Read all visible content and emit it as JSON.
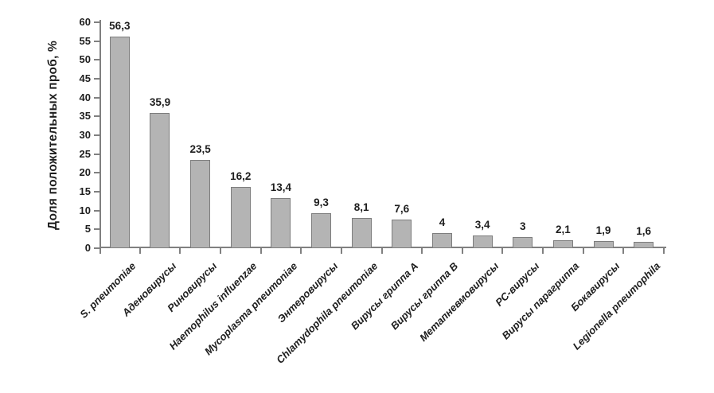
{
  "chart_data": {
    "type": "bar",
    "title": "",
    "xlabel": "",
    "ylabel": "Доля положительных проб, %",
    "ylim": [
      0,
      60
    ],
    "yticks": [
      0,
      5,
      10,
      15,
      20,
      25,
      30,
      35,
      40,
      45,
      50,
      55,
      60
    ],
    "grid": false,
    "legend_position": "none",
    "decimal_separator": ",",
    "categories": [
      "S. pneumoniae",
      "Аденовирусы",
      "Риновирусы",
      "Haemophilus influenzae",
      "Mycoplasma pneumoniae",
      "Энтеровирусы",
      "Chlamydophila pneumoniae",
      "Вирусы гриппа А",
      "Вирусы гриппа В",
      "Метапневмовирусы",
      "РС-вирусы",
      "Вирусы парагриппа",
      "Бокавирусы",
      "Legionella pneumophila"
    ],
    "values": [
      56.3,
      35.9,
      23.5,
      16.2,
      13.4,
      9.3,
      8.1,
      7.6,
      4,
      3.4,
      3,
      2.1,
      1.9,
      1.6
    ],
    "value_labels": [
      "56,3",
      "35,9",
      "23,5",
      "16,2",
      "13,4",
      "9,3",
      "8,1",
      "7,6",
      "4",
      "3,4",
      "3",
      "2,1",
      "1,9",
      "1,6"
    ],
    "colors": {
      "bar_fill": "#b4b4b4",
      "bar_border": "#7d7d7d",
      "axis": "#808080",
      "text": "#1e1e1e",
      "background": "#ffffff"
    }
  }
}
